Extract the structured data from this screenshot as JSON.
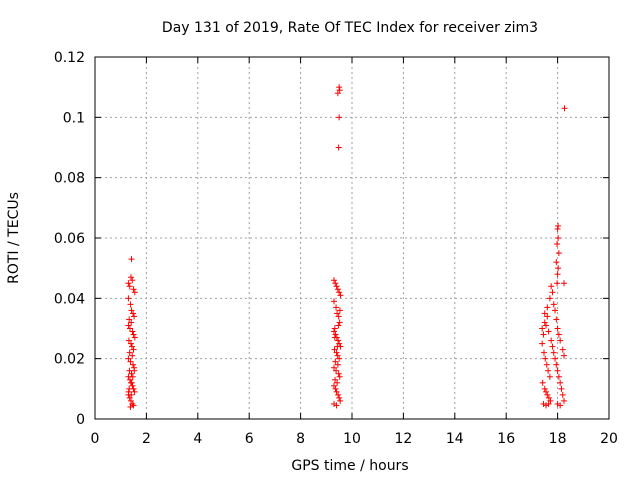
{
  "chart_data": {
    "type": "scatter",
    "title": "Day 131 of 2019, Rate Of TEC Index for receiver zim3",
    "xlabel": "GPS time / hours",
    "ylabel": "ROTI / TECUs",
    "xlim": [
      0,
      20
    ],
    "ylim": [
      0,
      0.12
    ],
    "xticks": [
      0,
      2,
      4,
      6,
      8,
      10,
      12,
      14,
      16,
      18,
      20
    ],
    "yticks": [
      0,
      0.02,
      0.04,
      0.06,
      0.08,
      0.1,
      0.12
    ],
    "xtick_labels": [
      "0",
      "2",
      "4",
      "6",
      "8",
      "10",
      "12",
      "14",
      "16",
      "18",
      "20"
    ],
    "ytick_labels": [
      "0",
      "0.02",
      "0.04",
      "0.06",
      "0.08",
      "0.1",
      "0.12"
    ],
    "grid": true,
    "marker": "+",
    "color": "#ff0000",
    "series": [
      {
        "name": "ROTI",
        "points": [
          [
            1.3,
            0.045
          ],
          [
            1.35,
            0.044
          ],
          [
            1.4,
            0.047
          ],
          [
            1.45,
            0.046
          ],
          [
            1.5,
            0.043
          ],
          [
            1.55,
            0.042
          ],
          [
            1.3,
            0.04
          ],
          [
            1.38,
            0.038
          ],
          [
            1.42,
            0.036
          ],
          [
            1.48,
            0.035
          ],
          [
            1.52,
            0.034
          ],
          [
            1.33,
            0.033
          ],
          [
            1.3,
            0.031
          ],
          [
            1.36,
            0.03
          ],
          [
            1.41,
            0.032
          ],
          [
            1.46,
            0.029
          ],
          [
            1.5,
            0.028
          ],
          [
            1.55,
            0.027
          ],
          [
            1.32,
            0.026
          ],
          [
            1.4,
            0.025
          ],
          [
            1.44,
            0.024
          ],
          [
            1.5,
            0.023
          ],
          [
            1.35,
            0.022
          ],
          [
            1.45,
            0.021
          ],
          [
            1.3,
            0.02
          ],
          [
            1.38,
            0.019
          ],
          [
            1.48,
            0.018
          ],
          [
            1.52,
            0.017
          ],
          [
            1.34,
            0.016
          ],
          [
            1.42,
            0.015
          ],
          [
            1.3,
            0.014
          ],
          [
            1.36,
            0.013
          ],
          [
            1.4,
            0.012
          ],
          [
            1.46,
            0.011
          ],
          [
            1.5,
            0.01
          ],
          [
            1.54,
            0.009
          ],
          [
            1.3,
            0.008
          ],
          [
            1.35,
            0.007
          ],
          [
            1.4,
            0.006
          ],
          [
            1.45,
            0.005
          ],
          [
            1.5,
            0.0045
          ],
          [
            1.38,
            0.004
          ],
          [
            1.33,
            0.01
          ],
          [
            1.43,
            0.012
          ],
          [
            1.47,
            0.014
          ],
          [
            1.53,
            0.016
          ],
          [
            1.31,
            0.009
          ],
          [
            1.41,
            0.008
          ],
          [
            1.42,
            0.053
          ],
          [
            9.3,
            0.046
          ],
          [
            9.35,
            0.045
          ],
          [
            9.4,
            0.044
          ],
          [
            9.45,
            0.043
          ],
          [
            9.5,
            0.042
          ],
          [
            9.55,
            0.041
          ],
          [
            9.3,
            0.039
          ],
          [
            9.38,
            0.037
          ],
          [
            9.42,
            0.035
          ],
          [
            9.48,
            0.034
          ],
          [
            9.52,
            0.032
          ],
          [
            9.33,
            0.03
          ],
          [
            9.3,
            0.029
          ],
          [
            9.36,
            0.028
          ],
          [
            9.41,
            0.027
          ],
          [
            9.46,
            0.026
          ],
          [
            9.5,
            0.025
          ],
          [
            9.55,
            0.024
          ],
          [
            9.32,
            0.023
          ],
          [
            9.4,
            0.022
          ],
          [
            9.44,
            0.021
          ],
          [
            9.5,
            0.02
          ],
          [
            9.35,
            0.019
          ],
          [
            9.45,
            0.018
          ],
          [
            9.3,
            0.017
          ],
          [
            9.38,
            0.016
          ],
          [
            9.48,
            0.015
          ],
          [
            9.52,
            0.014
          ],
          [
            9.34,
            0.013
          ],
          [
            9.42,
            0.012
          ],
          [
            9.3,
            0.011
          ],
          [
            9.36,
            0.01
          ],
          [
            9.4,
            0.009
          ],
          [
            9.46,
            0.008
          ],
          [
            9.5,
            0.007
          ],
          [
            9.54,
            0.006
          ],
          [
            9.3,
            0.005
          ],
          [
            9.4,
            0.0045
          ],
          [
            9.33,
            0.027
          ],
          [
            9.43,
            0.024
          ],
          [
            9.47,
            0.031
          ],
          [
            9.53,
            0.036
          ],
          [
            9.5,
            0.11
          ],
          [
            9.45,
            0.108
          ],
          [
            9.52,
            0.109
          ],
          [
            9.5,
            0.1
          ],
          [
            9.48,
            0.09
          ],
          [
            17.4,
            0.03
          ],
          [
            17.45,
            0.028
          ],
          [
            17.5,
            0.032
          ],
          [
            17.55,
            0.031
          ],
          [
            17.6,
            0.034
          ],
          [
            17.65,
            0.029
          ],
          [
            17.4,
            0.025
          ],
          [
            17.47,
            0.022
          ],
          [
            17.52,
            0.02
          ],
          [
            17.58,
            0.018
          ],
          [
            17.63,
            0.016
          ],
          [
            17.7,
            0.014
          ],
          [
            17.42,
            0.012
          ],
          [
            17.5,
            0.01
          ],
          [
            17.55,
            0.009
          ],
          [
            17.6,
            0.008
          ],
          [
            17.66,
            0.007
          ],
          [
            17.72,
            0.006
          ],
          [
            17.45,
            0.005
          ],
          [
            17.55,
            0.0045
          ],
          [
            17.65,
            0.005
          ],
          [
            17.75,
            0.026
          ],
          [
            17.8,
            0.024
          ],
          [
            17.85,
            0.022
          ],
          [
            17.9,
            0.02
          ],
          [
            17.95,
            0.018
          ],
          [
            18.0,
            0.016
          ],
          [
            18.05,
            0.014
          ],
          [
            18.1,
            0.012
          ],
          [
            18.15,
            0.01
          ],
          [
            18.2,
            0.008
          ],
          [
            18.25,
            0.006
          ],
          [
            18.0,
            0.005
          ],
          [
            18.1,
            0.0045
          ],
          [
            17.7,
            0.04
          ],
          [
            17.75,
            0.044
          ],
          [
            17.8,
            0.042
          ],
          [
            17.85,
            0.038
          ],
          [
            17.9,
            0.036
          ],
          [
            17.95,
            0.033
          ],
          [
            18.0,
            0.03
          ],
          [
            18.05,
            0.028
          ],
          [
            17.6,
            0.037
          ],
          [
            17.5,
            0.035
          ],
          [
            18.1,
            0.026
          ],
          [
            18.2,
            0.023
          ],
          [
            18.25,
            0.021
          ],
          [
            17.98,
            0.045
          ],
          [
            18.0,
            0.048
          ],
          [
            18.02,
            0.05
          ],
          [
            17.95,
            0.052
          ],
          [
            18.05,
            0.055
          ],
          [
            17.98,
            0.058
          ],
          [
            18.02,
            0.06
          ],
          [
            18.0,
            0.063
          ],
          [
            18.02,
            0.064
          ],
          [
            18.25,
            0.045
          ],
          [
            18.27,
            0.103
          ]
        ]
      }
    ]
  }
}
